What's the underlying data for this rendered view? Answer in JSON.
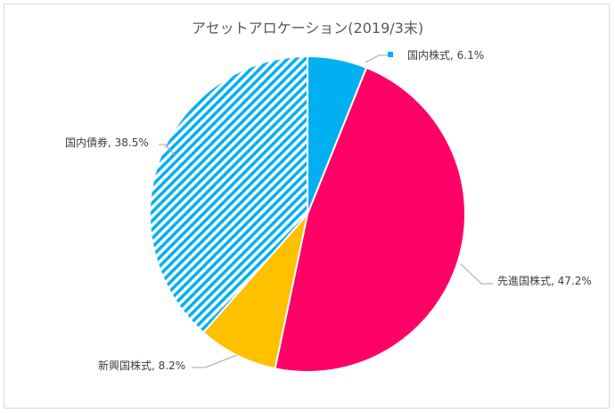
{
  "chart_data": {
    "type": "pie",
    "title": "アセットアロケーション(2019/3末)",
    "start": "top",
    "direction": "clockwise",
    "slices": [
      {
        "label": "国内株式",
        "value": 6.1,
        "display": "国内株式, 6.1%",
        "color": "#00B0F0",
        "pattern": "solid"
      },
      {
        "label": "先進国株式",
        "value": 47.2,
        "display": "先進国株式, 47.2%",
        "color": "#FF0066",
        "pattern": "solid"
      },
      {
        "label": "新興国株式",
        "value": 8.2,
        "display": "新興国株式, 8.2%",
        "color": "#FFC000",
        "pattern": "solid"
      },
      {
        "label": "国内債券",
        "value": 38.5,
        "display": "国内債券, 38.5%",
        "color": "#00B0F0",
        "pattern": "diagonal-stripes"
      }
    ]
  }
}
